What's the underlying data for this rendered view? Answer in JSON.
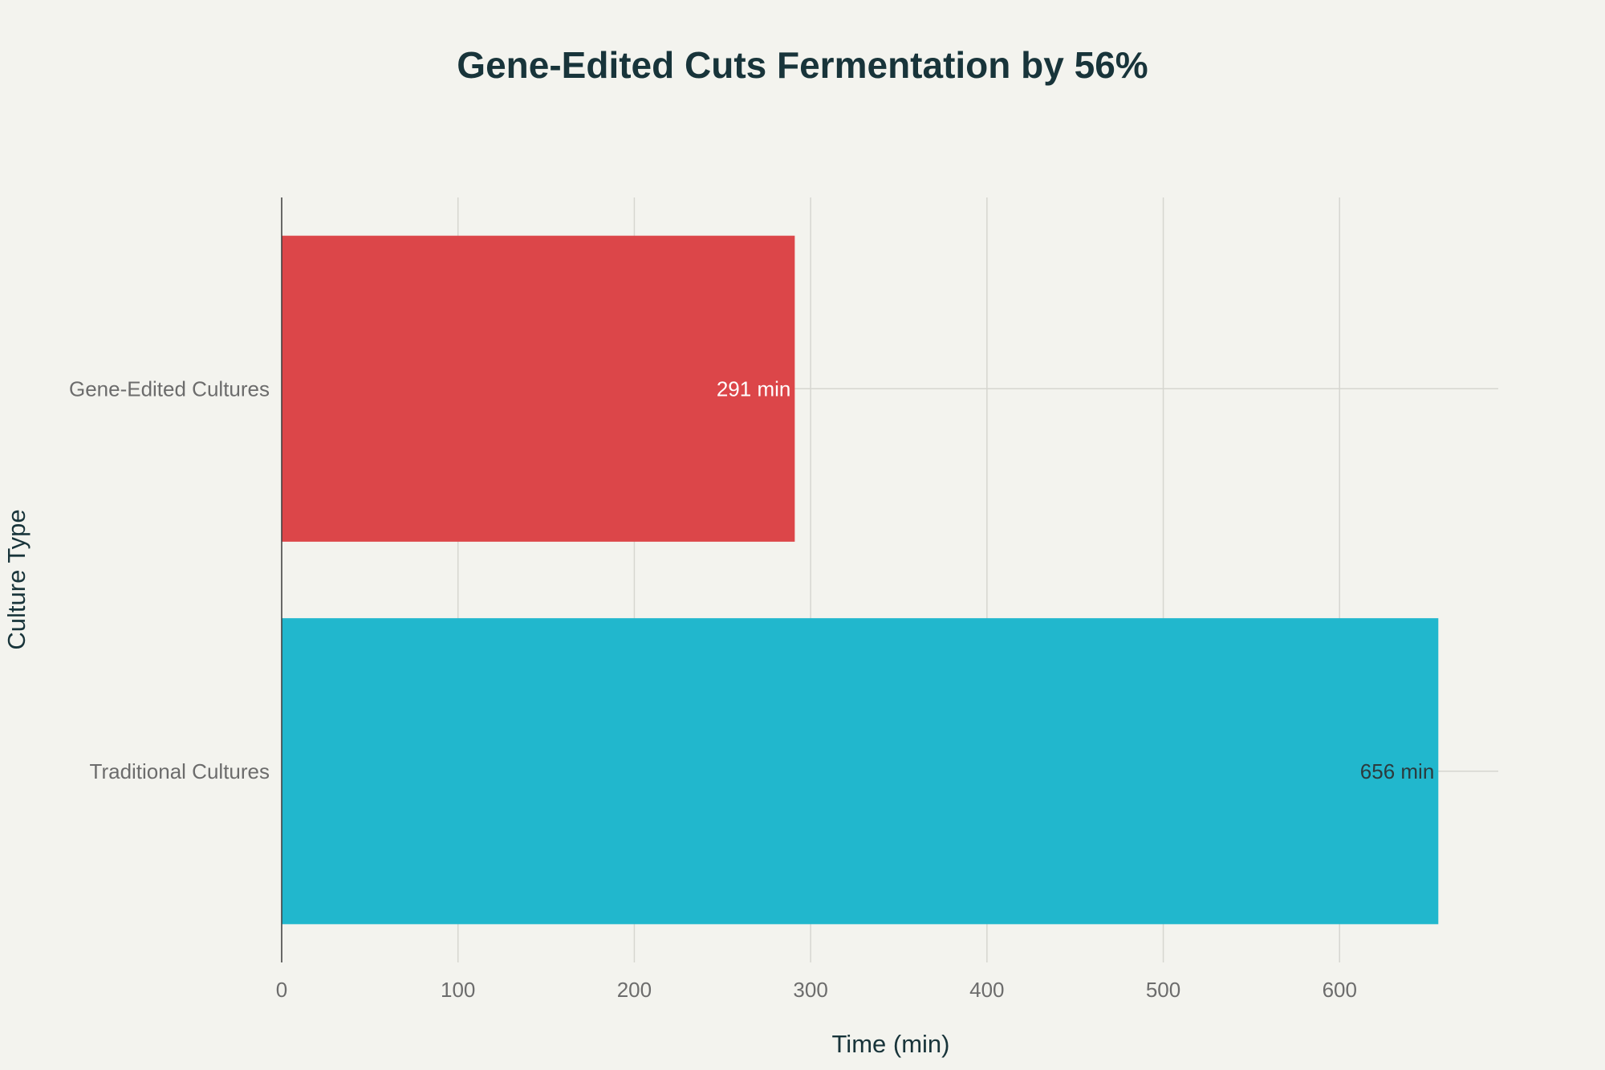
{
  "chart_data": {
    "type": "bar",
    "orientation": "horizontal",
    "title": "Gene-Edited Cuts Fermentation by 56%",
    "xlabel": "Time (min)",
    "ylabel": "Culture Type",
    "categories": [
      "Gene-Edited Cultures",
      "Traditional Cultures"
    ],
    "values": [
      291,
      656
    ],
    "data_labels": [
      "291 min",
      "656 min"
    ],
    "bar_colors": [
      "#dc4649",
      "#21b7cd"
    ],
    "label_colors": [
      "#ffffff",
      "#2c3a3d"
    ],
    "xlim": [
      0,
      690
    ],
    "xticks": [
      0,
      100,
      200,
      300,
      400,
      500,
      600
    ],
    "grid": true,
    "legend": "none"
  }
}
